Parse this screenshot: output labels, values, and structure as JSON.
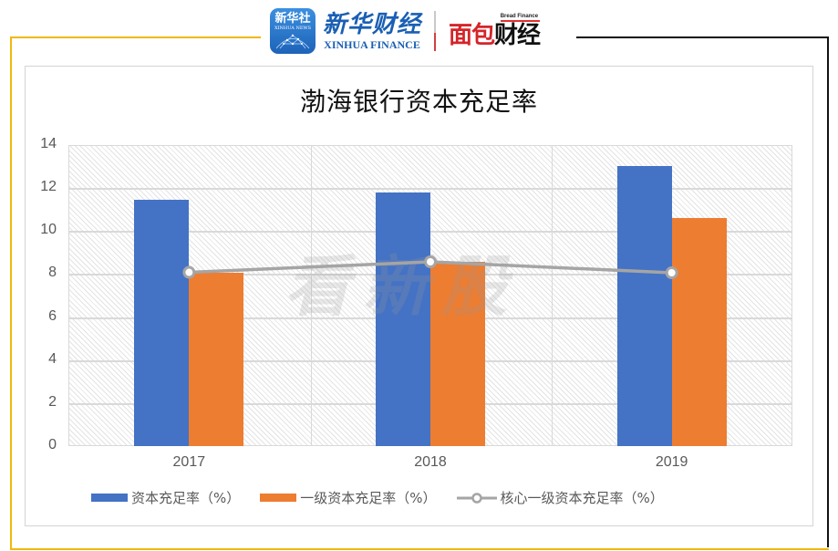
{
  "header": {
    "xinhua_icon_text": "新华社",
    "xinhua_icon_subtext": "XINHUA NEWS",
    "xinhua_finance_cn": "新华财经",
    "xinhua_finance_en": "XINHUA FINANCE",
    "bread_finance_en": "Bread Finance",
    "bread_finance_cn_red": "面包",
    "bread_finance_cn_black": "财经"
  },
  "watermark": "看新股",
  "colors": {
    "series_blue": "#4472c4",
    "series_orange": "#ed7d31",
    "series_line": "#a5a5a5",
    "frame_yellow": "#f0b90b",
    "frame_black": "#111111"
  },
  "chart_data": {
    "type": "bar",
    "title": "渤海银行资本充足率",
    "categories": [
      "2017",
      "2018",
      "2019"
    ],
    "series": [
      {
        "name": "资本充足率（%）",
        "type": "bar",
        "color": "#4472c4",
        "values": [
          11.45,
          11.79,
          13.02
        ]
      },
      {
        "name": "一级资本充足率（%）",
        "type": "bar",
        "color": "#ed7d31",
        "values": [
          8.08,
          8.57,
          10.61
        ]
      },
      {
        "name": "核心一级资本充足率（%）",
        "type": "line",
        "color": "#a5a5a5",
        "values": [
          8.08,
          8.57,
          8.06
        ]
      }
    ],
    "xlabel": "",
    "ylabel": "",
    "ylim": [
      0,
      14
    ],
    "yticks": [
      "0",
      "2",
      "4",
      "6",
      "8",
      "10",
      "12",
      "14"
    ],
    "grid": true,
    "legend_position": "bottom"
  }
}
